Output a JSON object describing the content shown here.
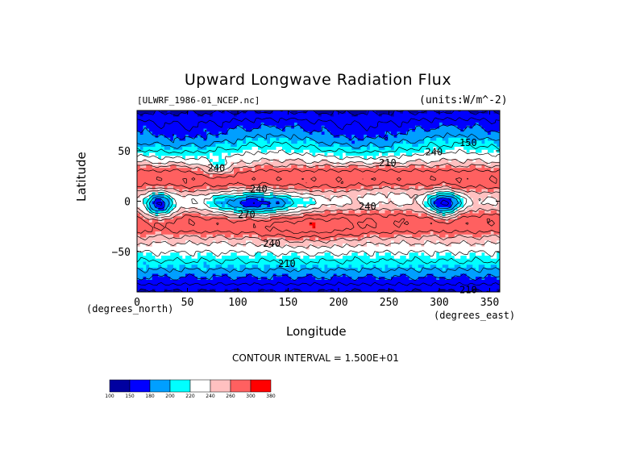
{
  "chart_data": {
    "type": "heatmap",
    "title": "Upward Longwave Radiation Flux",
    "file_label": "[ULWRF_1986-01_NCEP.nc]",
    "units_label": "(units:W/m^-2)",
    "xlabel": "Longitude",
    "ylabel": "Latitude",
    "x_unit_label": "(degrees_east)",
    "y_unit_label": "(degrees_north)",
    "contour_interval_label": "CONTOUR INTERVAL = 1.500E+01",
    "xlim": [
      0,
      360
    ],
    "ylim": [
      -90,
      90
    ],
    "x_ticks": [
      0,
      50,
      100,
      150,
      200,
      250,
      300,
      350
    ],
    "y_ticks": [
      50,
      0,
      -50
    ],
    "x_tick_labels": [
      "0",
      "50",
      "100",
      "150",
      "200",
      "250",
      "300",
      "350"
    ],
    "y_tick_labels": [
      "50",
      "0",
      "−50"
    ],
    "colorbar": {
      "levels": [
        "100",
        "150",
        "180",
        "200",
        "220",
        "240",
        "260",
        "300",
        "380"
      ],
      "colors": [
        "#0000a0",
        "#0000ff",
        "#009fff",
        "#00ffff",
        "#ffffff",
        "#ffc0c0",
        "#ff6060",
        "#ff0000"
      ]
    },
    "contour_labels": [
      {
        "text": "240",
        "x": 286,
        "y": 49
      },
      {
        "text": "150",
        "x": 320,
        "y": 58
      },
      {
        "text": "240",
        "x": 70,
        "y": 33
      },
      {
        "text": "210",
        "x": 240,
        "y": 38
      },
      {
        "text": "240",
        "x": 112,
        "y": 12
      },
      {
        "text": "240",
        "x": 220,
        "y": -5
      },
      {
        "text": "270",
        "x": 100,
        "y": -13
      },
      {
        "text": "240",
        "x": 125,
        "y": -42
      },
      {
        "text": "210",
        "x": 140,
        "y": -62
      },
      {
        "text": "210",
        "x": 320,
        "y": -88
      }
    ]
  }
}
